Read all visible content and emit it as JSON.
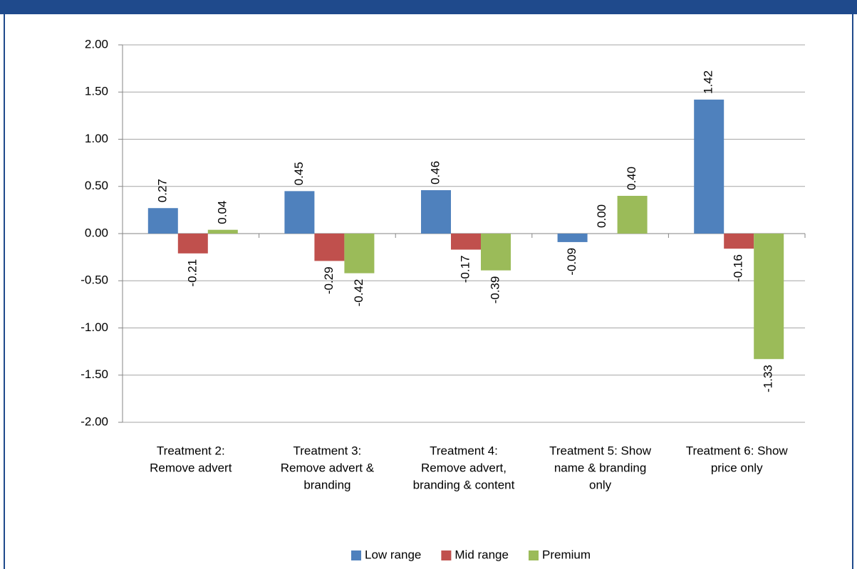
{
  "chart_data": {
    "type": "bar",
    "categories": [
      [
        "Treatment 2:",
        "Remove advert"
      ],
      [
        "Treatment 3:",
        "Remove advert &",
        "branding"
      ],
      [
        "Treatment 4:",
        "Remove advert,",
        "branding & content"
      ],
      [
        "Treatment 5: Show",
        "name & branding",
        "only"
      ],
      [
        "Treatment 6: Show",
        "price only"
      ]
    ],
    "series": [
      {
        "name": "Low range",
        "color": "#4f81bd",
        "values": [
          0.27,
          0.45,
          0.46,
          -0.09,
          1.42
        ],
        "value_labels": [
          "0.27",
          "0.45",
          "0.46",
          "-0.09",
          "1.42"
        ]
      },
      {
        "name": "Mid range",
        "color": "#c0504d",
        "values": [
          -0.21,
          -0.29,
          -0.17,
          0,
          -0.16
        ],
        "value_labels": [
          "-0.21",
          "-0.29",
          "-0.17",
          "0.00",
          "-0.16"
        ]
      },
      {
        "name": "Premium",
        "color": "#9bbb59",
        "values": [
          0.04,
          -0.42,
          -0.39,
          0.4,
          -1.33
        ],
        "value_labels": [
          "0.04",
          "-0.42",
          "-0.39",
          "0.40",
          "-1.33"
        ]
      }
    ],
    "ylim": [
      -2,
      2
    ],
    "yticks": [
      {
        "value": -2,
        "label": "-2.00"
      },
      {
        "value": -1.5,
        "label": "-1.50"
      },
      {
        "value": -1,
        "label": "-1.00"
      },
      {
        "value": -0.5,
        "label": "-0.50"
      },
      {
        "value": 0,
        "label": "0.00"
      },
      {
        "value": 0.5,
        "label": "0.50"
      },
      {
        "value": 1,
        "label": "1.00"
      },
      {
        "value": 1.5,
        "label": "1.50"
      },
      {
        "value": 2,
        "label": "2.00"
      }
    ],
    "grid": true,
    "legend": "bottom"
  }
}
